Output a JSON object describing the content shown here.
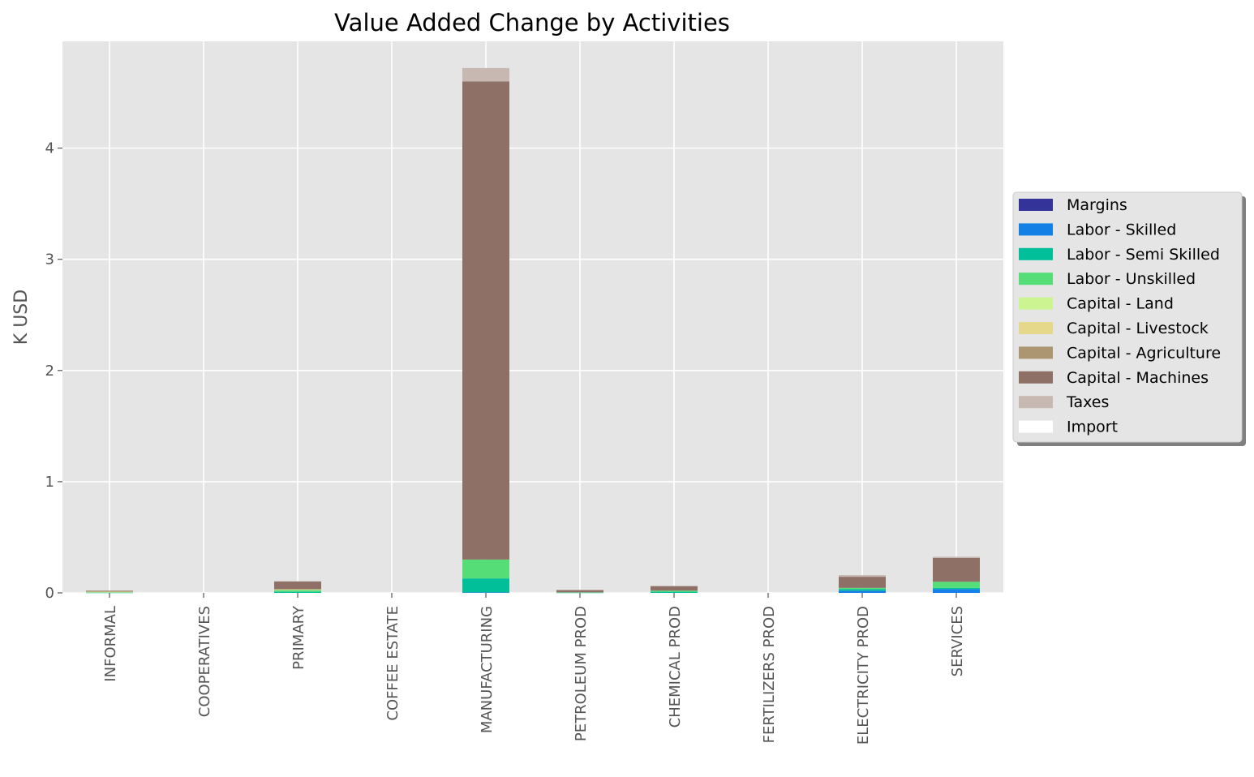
{
  "chart_data": {
    "type": "bar",
    "stacked": true,
    "title": "Value Added Change by Activities",
    "xlabel": "",
    "ylabel": "K USD",
    "ylim": [
      0,
      4.96
    ],
    "yticks": [
      0,
      1,
      2,
      3,
      4
    ],
    "grid": true,
    "legend_position": "right",
    "categories": [
      "INFORMAL",
      "COOPERATIVES",
      "PRIMARY",
      "COFFEE ESTATE",
      "MANUFACTURING",
      "PETROLEUM PROD",
      "CHEMICAL PROD",
      "FERTILIZERS PROD",
      "ELECTRICITY PROD",
      "SERVICES"
    ],
    "series": [
      {
        "name": "Margins",
        "color": "#343399",
        "values": [
          0,
          0,
          0,
          0,
          0,
          0,
          0,
          0,
          0,
          0
        ]
      },
      {
        "name": "Labor - Skilled",
        "color": "#1380e6",
        "values": [
          0,
          0,
          0,
          0,
          0.005,
          0,
          0,
          0,
          0.02,
          0.035
        ]
      },
      {
        "name": "Labor - Semi Skilled",
        "color": "#00bf99",
        "values": [
          0.002,
          0,
          0.01,
          0,
          0.125,
          0.002,
          0.01,
          0,
          0.015,
          0.01
        ]
      },
      {
        "name": "Labor - Unskilled",
        "color": "#55dd77",
        "values": [
          0.003,
          0,
          0.015,
          0,
          0.17,
          0.003,
          0.01,
          0,
          0.01,
          0.055
        ]
      },
      {
        "name": "Capital - Land",
        "color": "#ccf490",
        "values": [
          0.003,
          0,
          0.003,
          0,
          0,
          0,
          0,
          0,
          0,
          0
        ]
      },
      {
        "name": "Capital - Livestock",
        "color": "#e5d88a",
        "values": [
          0.002,
          0,
          0.002,
          0,
          0,
          0,
          0,
          0,
          0,
          0
        ]
      },
      {
        "name": "Capital - Agriculture",
        "color": "#ac9571",
        "values": [
          0.008,
          0,
          0.005,
          0,
          0,
          0,
          0,
          0,
          0,
          0
        ]
      },
      {
        "name": "Capital - Machines",
        "color": "#8e7066",
        "values": [
          0.002,
          0,
          0.068,
          0,
          4.3,
          0.02,
          0.04,
          0,
          0.1,
          0.215
        ]
      },
      {
        "name": "Taxes",
        "color": "#c7b8b2",
        "values": [
          0,
          0,
          0.002,
          0,
          0.12,
          0.003,
          0.005,
          0,
          0.015,
          0.01
        ]
      },
      {
        "name": "Import",
        "color": "#ffffff",
        "values": [
          0,
          0,
          0,
          0,
          0,
          0,
          0,
          0,
          0,
          0
        ]
      }
    ]
  },
  "colors": {
    "plot_background": "#e5e5e5",
    "grid": "#ffffff",
    "tick_text": "#555555",
    "legend_background": "#e5e5e5",
    "legend_border": "#cccccc",
    "legend_shadow": "#808080"
  }
}
